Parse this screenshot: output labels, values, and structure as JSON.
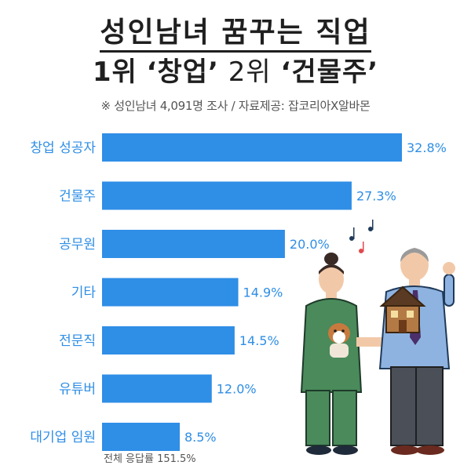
{
  "header": {
    "title": "성인남녀 꿈꾸는 직업",
    "subtitle_rank1": "1위",
    "subtitle_pick1": "‘창업’",
    "subtitle_rank2": "2위",
    "subtitle_pick2": "‘건물주’",
    "source": "※ 성인남녀 4,091명 조사 / 자료제공: 잡코리아X알바몬"
  },
  "footnote": "전체 응답률 151.5%",
  "colors": {
    "bar": "#2f8ee6",
    "label": "#2f8ee6",
    "value": "#2f8ee6"
  },
  "chart_data": {
    "type": "bar",
    "orientation": "horizontal",
    "categories": [
      "창업 성공자",
      "건물주",
      "공무원",
      "기타",
      "전문직",
      "유튜버",
      "대기업 임원"
    ],
    "values": [
      32.8,
      27.3,
      20.0,
      14.9,
      14.5,
      12.0,
      8.5
    ],
    "value_labels": [
      "32.8%",
      "27.3%",
      "20.0%",
      "14.9%",
      "14.5%",
      "12.0%",
      "8.5%"
    ],
    "unit": "%",
    "xlim": [
      0,
      32.8
    ],
    "grid": false,
    "legend": "none"
  }
}
